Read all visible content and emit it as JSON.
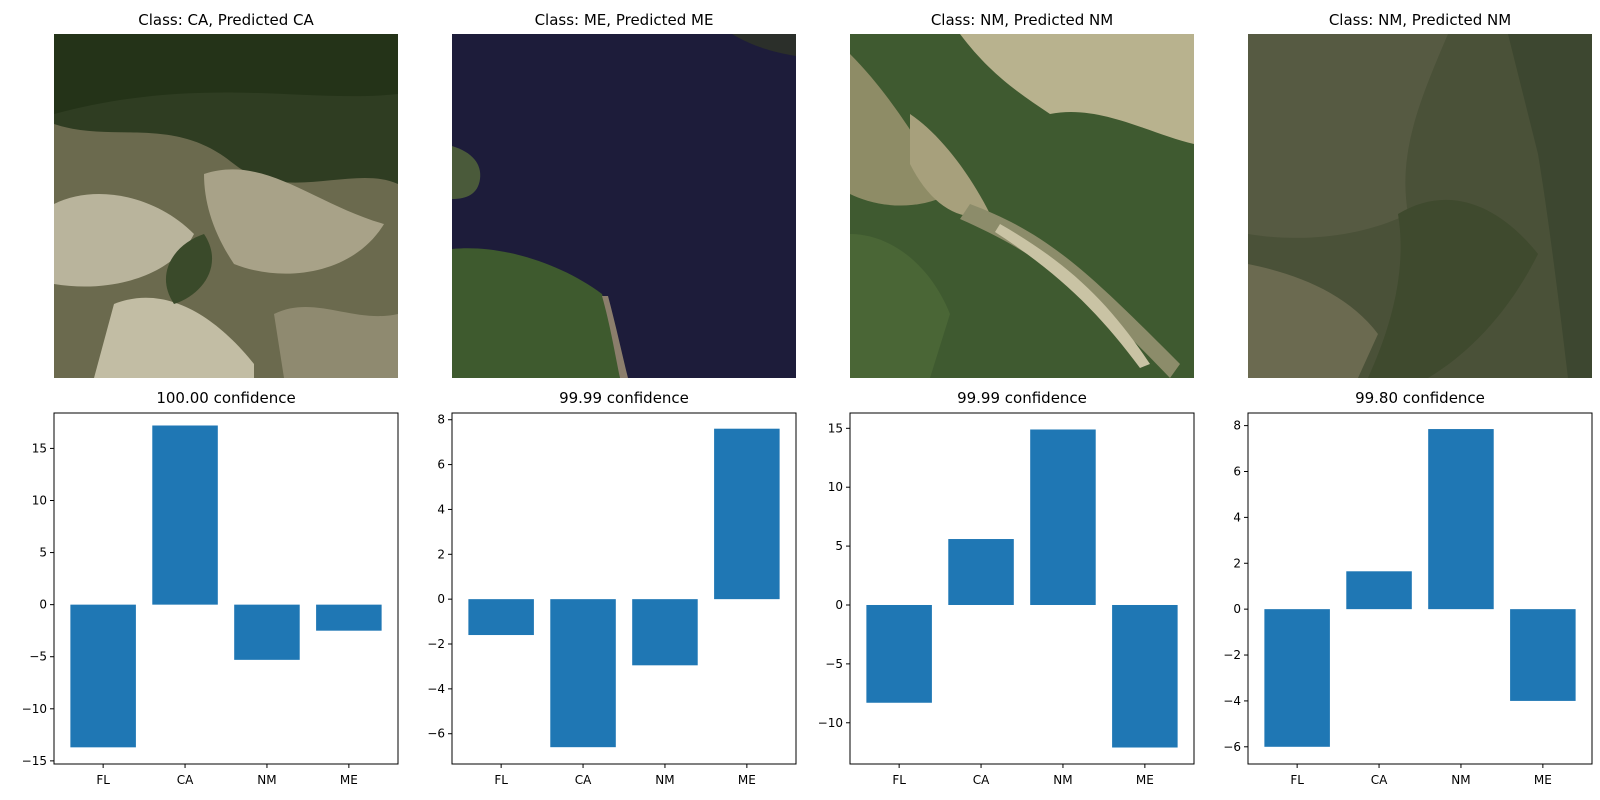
{
  "panels": [
    {
      "image_title": "Class: CA, Predicted CA",
      "image_scene": "forest-rocky-terrain",
      "chart_title": "100.00 confidence"
    },
    {
      "image_title": "Class: ME, Predicted ME",
      "image_scene": "lake-with-forest-shore",
      "chart_title": "99.99 confidence"
    },
    {
      "image_title": "Class: NM, Predicted NM",
      "image_scene": "valley-with-river",
      "chart_title": "99.99 confidence"
    },
    {
      "image_title": "Class: NM, Predicted NM",
      "image_scene": "dense-forest-ridges",
      "chart_title": "99.80 confidence"
    }
  ],
  "bar_color": "#1f77b4",
  "chart_data": [
    {
      "type": "bar",
      "title": "100.00 confidence",
      "categories": [
        "FL",
        "CA",
        "NM",
        "ME"
      ],
      "values": [
        -13.7,
        17.2,
        -5.3,
        -2.5
      ],
      "ylim": [
        -15.3,
        18.4
      ],
      "yticks": [
        -15,
        -10,
        -5,
        0,
        5,
        10,
        15
      ],
      "grid": false,
      "xlabel": "",
      "ylabel": ""
    },
    {
      "type": "bar",
      "title": "99.99 confidence",
      "categories": [
        "FL",
        "CA",
        "NM",
        "ME"
      ],
      "values": [
        -1.6,
        -6.6,
        -2.95,
        7.6
      ],
      "ylim": [
        -7.35,
        8.3
      ],
      "yticks": [
        -6,
        -4,
        -2,
        0,
        2,
        4,
        6,
        8
      ],
      "grid": false,
      "xlabel": "",
      "ylabel": ""
    },
    {
      "type": "bar",
      "title": "99.99 confidence",
      "categories": [
        "FL",
        "CA",
        "NM",
        "ME"
      ],
      "values": [
        -8.3,
        5.6,
        14.9,
        -12.1
      ],
      "ylim": [
        -13.5,
        16.3
      ],
      "yticks": [
        -10,
        -5,
        0,
        5,
        10,
        15
      ],
      "grid": false,
      "xlabel": "",
      "ylabel": ""
    },
    {
      "type": "bar",
      "title": "99.80 confidence",
      "categories": [
        "FL",
        "CA",
        "NM",
        "ME"
      ],
      "values": [
        -6.0,
        1.65,
        7.85,
        -4.0
      ],
      "ylim": [
        -6.75,
        8.55
      ],
      "yticks": [
        -6,
        -4,
        -2,
        0,
        2,
        4,
        6,
        8
      ],
      "grid": false,
      "xlabel": "",
      "ylabel": ""
    }
  ]
}
